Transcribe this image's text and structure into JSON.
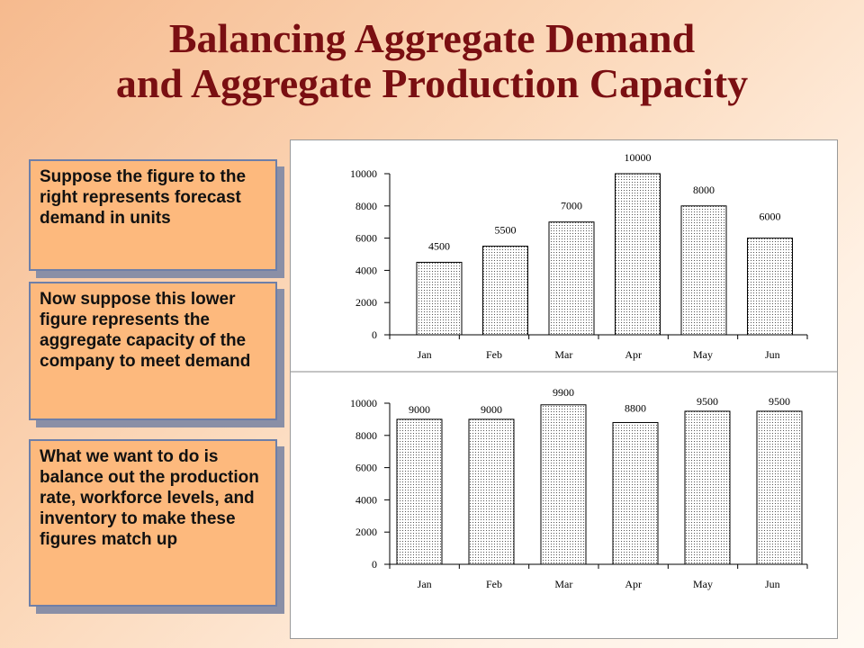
{
  "slide": {
    "title_line1": "Balancing Aggregate Demand",
    "title_line2": "and Aggregate Production Capacity",
    "textboxes": [
      "Suppose the figure to the right represents forecast demand in units",
      "Now suppose this lower figure represents the aggregate capacity of the company to meet demand",
      "What we want to do is balance out the production rate, workforce levels, and inventory to make these figures match up"
    ]
  },
  "chart_data": [
    {
      "type": "bar",
      "title": "",
      "xlabel": "",
      "ylabel": "",
      "categories": [
        "Jan",
        "Feb",
        "Mar",
        "Apr",
        "May",
        "Jun"
      ],
      "values": [
        4500,
        5500,
        7000,
        10000,
        8000,
        6000
      ],
      "value_labels": [
        "4500",
        "5500",
        "7000",
        "10000",
        "8000",
        "6000"
      ],
      "ylim": [
        0,
        10000
      ],
      "yticks": [
        0,
        2000,
        4000,
        6000,
        8000,
        10000
      ],
      "grid": false,
      "bar_fill": "dotted"
    },
    {
      "type": "bar",
      "title": "",
      "xlabel": "",
      "ylabel": "",
      "categories": [
        "Jan",
        "Feb",
        "Mar",
        "Apr",
        "May",
        "Jun"
      ],
      "values": [
        9000,
        9000,
        9900,
        8800,
        9500,
        9500
      ],
      "value_labels": [
        "9000",
        "9000",
        "9900",
        "8800",
        "9500",
        "9500"
      ],
      "ylim": [
        0,
        10000
      ],
      "yticks": [
        0,
        2000,
        4000,
        6000,
        8000,
        10000
      ],
      "grid": false,
      "bar_fill": "dotted"
    }
  ]
}
